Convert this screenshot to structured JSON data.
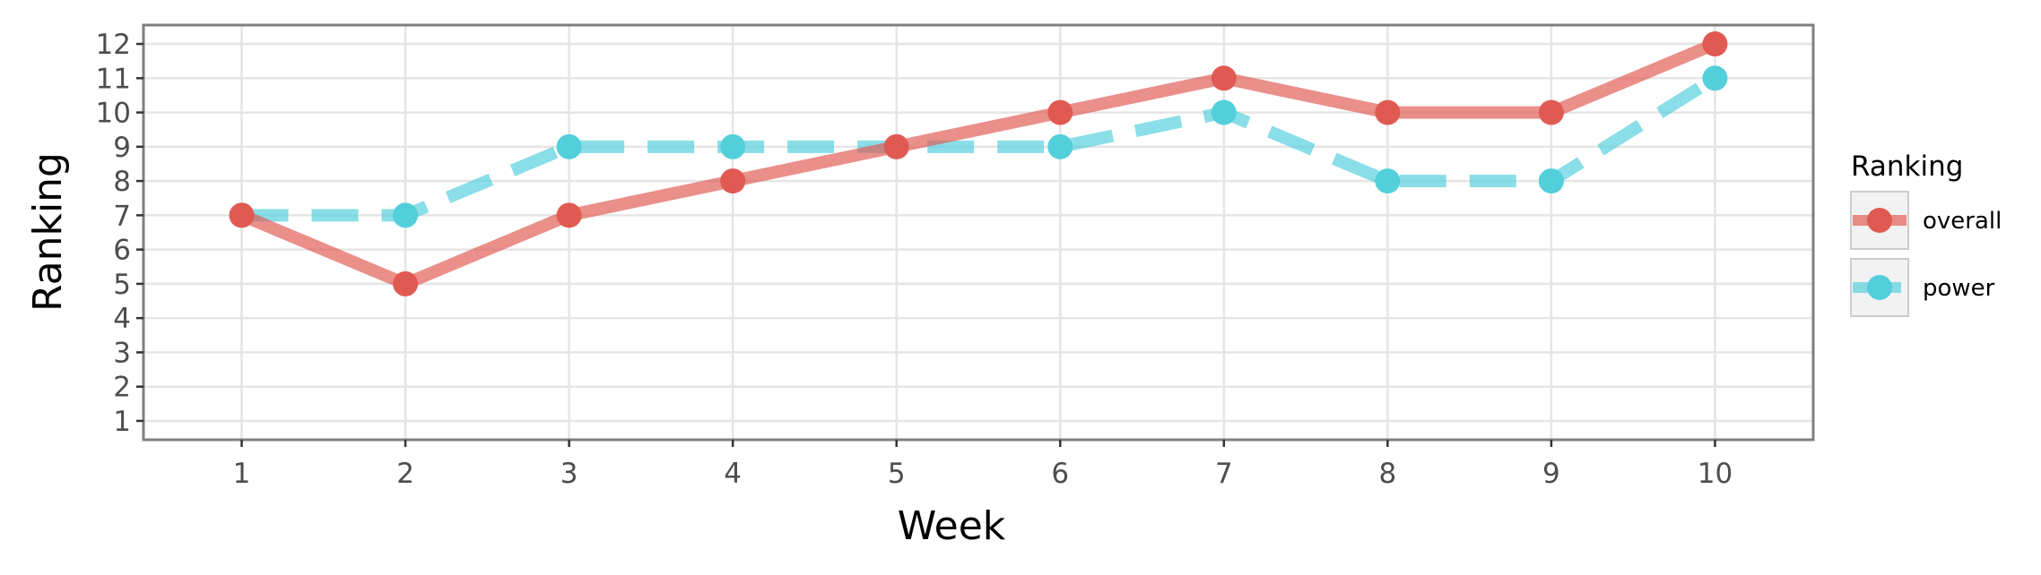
{
  "chart_data": {
    "type": "line",
    "xlabel": "Week",
    "ylabel": "Ranking",
    "x": [
      1,
      2,
      3,
      4,
      5,
      6,
      7,
      8,
      9,
      10
    ],
    "x_ticks": [
      "1",
      "2",
      "3",
      "4",
      "5",
      "6",
      "7",
      "8",
      "9",
      "10"
    ],
    "y_ticks": [
      "1",
      "2",
      "3",
      "4",
      "5",
      "6",
      "7",
      "8",
      "9",
      "10",
      "11",
      "12"
    ],
    "xlim": [
      0.4,
      10.6
    ],
    "ylim": [
      12.55,
      0.45
    ],
    "y_reversed": true,
    "grid": true,
    "legend": {
      "title": "Ranking",
      "position": "right"
    },
    "series": [
      {
        "name": "overall",
        "values": [
          7,
          5,
          7,
          8,
          9,
          10,
          11,
          10,
          10,
          12
        ],
        "color": "#e05a52",
        "line_style": "solid"
      },
      {
        "name": "power",
        "values": [
          7,
          7,
          9,
          9,
          9,
          9,
          10,
          8,
          8,
          11
        ],
        "color": "#52cfdb",
        "line_style": "dashed"
      }
    ]
  }
}
